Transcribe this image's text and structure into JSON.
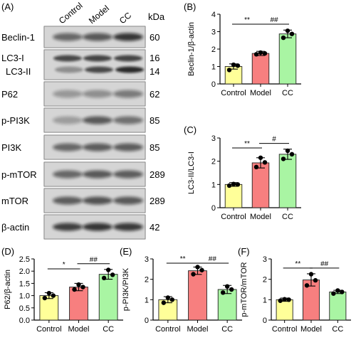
{
  "western_blot": {
    "panel_label": "(A)",
    "lane_labels": [
      "Control",
      "Model",
      "CC"
    ],
    "unit_header": "kDa",
    "bands": [
      {
        "name": "Beclin-1",
        "kda": "60"
      },
      {
        "name": "LC3-I",
        "kda": "16",
        "second_name": "LC3-II",
        "second_kda": "14"
      },
      {
        "name": "P62",
        "kda": "62"
      },
      {
        "name": "p-PI3K",
        "kda": "85"
      },
      {
        "name": "PI3K",
        "kda": "85"
      },
      {
        "name": "p-mTOR",
        "kda": "289"
      },
      {
        "name": "mTOR",
        "kda": "289"
      },
      {
        "name": "β-actin",
        "kda": "42"
      }
    ]
  },
  "colors": {
    "control": "#ffff99",
    "model": "#f77f7f",
    "cc": "#a9f5a3",
    "points": "#000000"
  },
  "chart_data": [
    {
      "panel": "(B)",
      "type": "bar",
      "categories": [
        "Control",
        "Model",
        "CC"
      ],
      "values": [
        1.0,
        1.75,
        2.87
      ],
      "errors": [
        0.15,
        0.12,
        0.22
      ],
      "points": [
        [
          0.8,
          1.05,
          1.1
        ],
        [
          1.7,
          1.75,
          1.8
        ],
        [
          2.65,
          2.87,
          3.05
        ]
      ],
      "ylabel": "Beclin-1/β-actin",
      "ylim": [
        0,
        4
      ],
      "yticks": [
        0,
        1,
        2,
        3,
        4
      ],
      "significance": [
        {
          "from": 0,
          "to": 1,
          "label": "**"
        },
        {
          "from": 1,
          "to": 2,
          "label": "##"
        }
      ]
    },
    {
      "panel": "(C)",
      "type": "bar",
      "categories": [
        "Control",
        "Model",
        "CC"
      ],
      "values": [
        1.0,
        1.93,
        2.3
      ],
      "errors": [
        0.08,
        0.22,
        0.22
      ],
      "points": [
        [
          0.95,
          1.0,
          1.02
        ],
        [
          1.75,
          1.95,
          2.15
        ],
        [
          2.1,
          2.3,
          2.45
        ]
      ],
      "ylabel": "LC3-II/LC3-I",
      "ylim": [
        0,
        3
      ],
      "yticks": [
        0,
        1,
        2,
        3
      ],
      "significance": [
        {
          "from": 0,
          "to": 1,
          "label": "**"
        },
        {
          "from": 1,
          "to": 2,
          "label": "#"
        }
      ]
    },
    {
      "panel": "(D)",
      "type": "bar",
      "categories": [
        "Control",
        "Model",
        "CC"
      ],
      "values": [
        1.0,
        1.35,
        1.87
      ],
      "errors": [
        0.12,
        0.15,
        0.2
      ],
      "points": [
        [
          0.9,
          1.0,
          1.1
        ],
        [
          1.25,
          1.35,
          1.45
        ],
        [
          1.72,
          1.85,
          2.05
        ]
      ],
      "ylabel": "P62/β-actin",
      "ylim": [
        0,
        2.5
      ],
      "yticks": [
        0,
        0.5,
        1.0,
        1.5,
        2.0,
        2.5
      ],
      "ytick_labels": [
        "0.0",
        "0.5",
        "1.0",
        "1.5",
        "2.0",
        "2.5"
      ],
      "significance": [
        {
          "from": 0,
          "to": 1,
          "label": "*"
        },
        {
          "from": 1,
          "to": 2,
          "label": "##"
        }
      ]
    },
    {
      "panel": "(E)",
      "type": "bar",
      "categories": [
        "Control",
        "Model",
        "CC"
      ],
      "values": [
        1.0,
        2.42,
        1.5
      ],
      "errors": [
        0.15,
        0.18,
        0.2
      ],
      "points": [
        [
          0.85,
          1.0,
          1.1
        ],
        [
          2.25,
          2.45,
          2.6
        ],
        [
          1.35,
          1.5,
          1.65
        ]
      ],
      "ylabel": "p-PI3K/PI3K",
      "ylim": [
        0,
        3
      ],
      "yticks": [
        0,
        1,
        2,
        3
      ],
      "significance": [
        {
          "from": 0,
          "to": 1,
          "label": "**"
        },
        {
          "from": 1,
          "to": 2,
          "label": "##"
        }
      ]
    },
    {
      "panel": "(F)",
      "type": "bar",
      "categories": [
        "Control",
        "Model",
        "CC"
      ],
      "values": [
        1.0,
        1.97,
        1.38
      ],
      "errors": [
        0.08,
        0.3,
        0.08
      ],
      "points": [
        [
          0.95,
          1.0,
          1.02
        ],
        [
          1.7,
          1.95,
          2.25
        ],
        [
          1.3,
          1.38,
          1.45
        ]
      ],
      "ylabel": "p-mTOR/mTOR",
      "ylim": [
        0,
        3
      ],
      "yticks": [
        0,
        1,
        2,
        3
      ],
      "significance": [
        {
          "from": 0,
          "to": 1,
          "label": "**"
        },
        {
          "from": 1,
          "to": 2,
          "label": "##"
        }
      ]
    }
  ]
}
